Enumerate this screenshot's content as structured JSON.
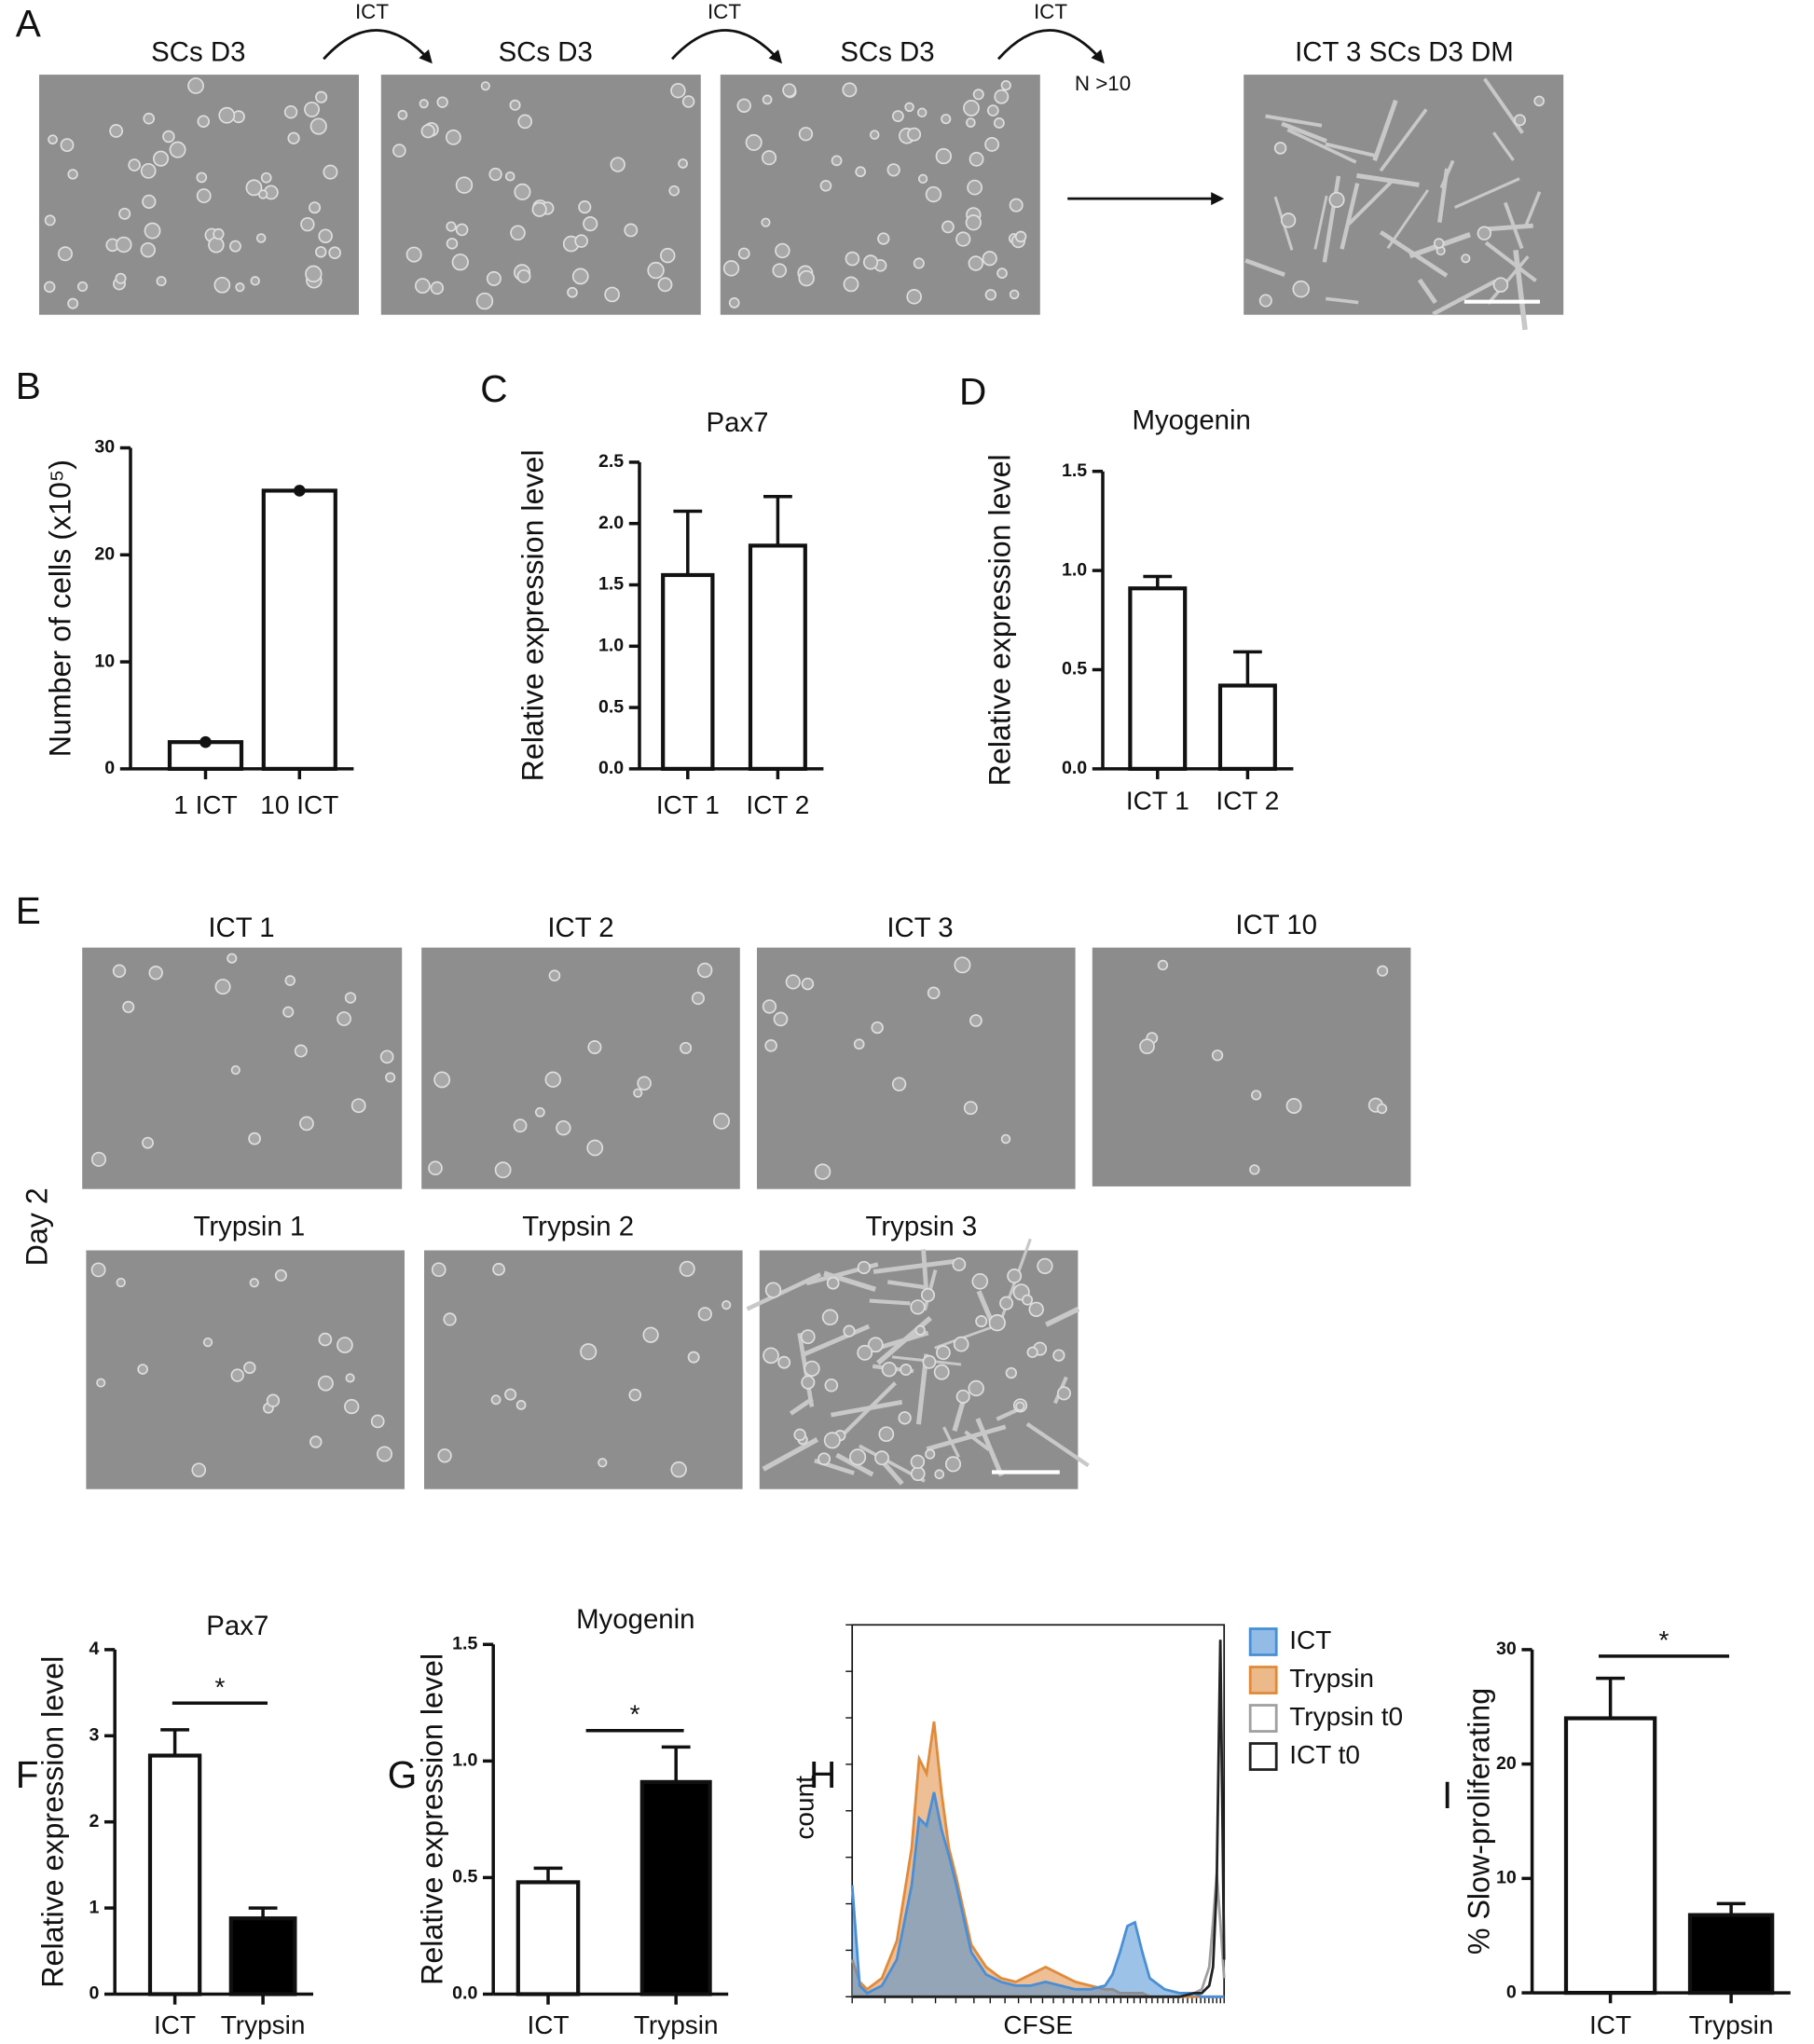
{
  "figure": {
    "panel_labels": [
      "A",
      "B",
      "C",
      "D",
      "E",
      "F",
      "G",
      "H",
      "I"
    ],
    "image_titles": [
      "SCs D3",
      "SCs D3",
      "SCs D3",
      "ICT 3 SCs D3 DM",
      "ICT 1",
      "ICT 2",
      "ICT 3",
      "ICT 10",
      "Trypsin 1",
      "Trypsin 2",
      "Trypsin 3"
    ],
    "arrow_labels": [
      "ICT",
      "ICT",
      "ICT",
      "N >10"
    ],
    "side_label": "Day 2"
  },
  "chart_data": [
    {
      "type": "bar",
      "ylabel": "Number of cells (x10⁵)",
      "categories": [
        "1 ICT",
        "10 ICT"
      ],
      "values": [
        2.5,
        26
      ],
      "colors": [
        "#ffffff",
        "#ffffff"
      ],
      "individual_points": true,
      "ylim": [
        0,
        30
      ],
      "yticks": [
        0,
        10,
        20,
        30
      ]
    },
    {
      "type": "bar",
      "title": "Pax7",
      "ylabel": "Relative expression level",
      "categories": [
        "ICT 1",
        "ICT 2"
      ],
      "values": [
        1.58,
        1.82
      ],
      "errors": [
        0.52,
        0.4
      ],
      "colors": [
        "#ffffff",
        "#ffffff"
      ],
      "ylim": [
        0,
        2.5
      ],
      "yticks": [
        {
          "value": 0,
          "label": "0.0"
        },
        0.5,
        {
          "value": 1,
          "label": "1.0"
        },
        1.5,
        {
          "value": 2,
          "label": "2.0"
        },
        2.5
      ]
    },
    {
      "type": "bar",
      "title": "Myogenin",
      "ylabel": "Relative expression level",
      "categories": [
        "ICT 1",
        "ICT 2"
      ],
      "values": [
        0.91,
        0.42
      ],
      "errors": [
        0.06,
        0.17
      ],
      "colors": [
        "#ffffff",
        "#ffffff"
      ],
      "ylim": [
        0,
        1.5
      ],
      "yticks": [
        {
          "value": 0,
          "label": "0.0"
        },
        0.5,
        {
          "value": 1,
          "label": "1.0"
        },
        1.5
      ]
    },
    {
      "type": "bar",
      "title": "Pax7",
      "ylabel": "Relative expression level",
      "categories": [
        "ICT",
        "Trypsin"
      ],
      "values": [
        2.77,
        0.88
      ],
      "errors": [
        0.3,
        0.12
      ],
      "colors": [
        "#ffffff",
        "#000000"
      ],
      "significance": "*",
      "ylim": [
        0,
        4
      ],
      "yticks": [
        0,
        1,
        2,
        3,
        4
      ]
    },
    {
      "type": "bar",
      "title": "Myogenin",
      "ylabel": "Relative expression level",
      "categories": [
        "ICT",
        "Trypsin"
      ],
      "values": [
        0.48,
        0.91
      ],
      "errors": [
        0.06,
        0.15
      ],
      "colors": [
        "#ffffff",
        "#000000"
      ],
      "significance": "*",
      "ylim": [
        0,
        1.5
      ],
      "yticks": [
        {
          "value": 0,
          "label": "0.0"
        },
        0.5,
        {
          "value": 1,
          "label": "1.0"
        },
        1.5
      ]
    },
    {
      "type": "area",
      "xlabel": "CFSE",
      "ylabel": "count",
      "xlim": [
        0,
        100
      ],
      "ylim": [
        0,
        100
      ],
      "x": [
        0,
        2,
        4,
        8,
        12,
        16,
        18,
        20,
        22,
        24,
        26,
        28,
        32,
        36,
        40,
        44,
        48,
        52,
        56,
        60,
        64,
        68,
        70,
        72,
        74,
        76,
        78,
        80,
        84,
        88,
        92,
        94,
        96,
        97,
        98,
        99,
        100
      ],
      "series": [
        {
          "name": "ICT",
          "color": "#4a8fd6",
          "filled": true,
          "values": [
            30,
            3,
            1,
            3,
            10,
            30,
            48,
            46,
            55,
            45,
            38,
            30,
            12,
            6,
            4,
            3,
            3,
            4,
            3,
            2,
            2,
            3,
            6,
            12,
            19,
            20,
            12,
            5,
            2,
            1,
            1,
            0,
            0,
            0,
            0,
            0,
            0
          ]
        },
        {
          "name": "Trypsin",
          "color": "#e08a3c",
          "filled": true,
          "values": [
            10,
            4,
            2,
            5,
            15,
            40,
            64,
            60,
            74,
            55,
            40,
            32,
            14,
            8,
            5,
            4,
            6,
            8,
            6,
            4,
            3,
            2,
            2,
            1,
            1,
            1,
            1,
            0,
            0,
            0,
            0,
            0,
            0,
            0,
            0,
            0,
            0
          ]
        },
        {
          "name": "Trypsin t0",
          "color": "#a0a0a0",
          "filled": false,
          "values": [
            0,
            0,
            0,
            0,
            0,
            0,
            0,
            0,
            0,
            0,
            0,
            0,
            0,
            0,
            0,
            0,
            0,
            0,
            0,
            0,
            0,
            0,
            0,
            0,
            0,
            0,
            0,
            0,
            0,
            0,
            1,
            2,
            8,
            20,
            33,
            20,
            5
          ]
        },
        {
          "name": "ICT t0",
          "color": "#222222",
          "filled": false,
          "values": [
            0,
            0,
            0,
            0,
            0,
            0,
            0,
            0,
            0,
            0,
            0,
            0,
            0,
            0,
            0,
            0,
            0,
            0,
            0,
            0,
            0,
            0,
            0,
            0,
            0,
            0,
            0,
            0,
            0,
            0,
            1,
            1,
            3,
            8,
            30,
            96,
            10
          ]
        }
      ]
    },
    {
      "type": "bar",
      "ylabel": "% Slow-proliferating",
      "categories": [
        "ICT",
        "Trypsin"
      ],
      "values": [
        24,
        6.8
      ],
      "errors": [
        3.5,
        1
      ],
      "colors": [
        "#ffffff",
        "#000000"
      ],
      "significance": "*",
      "ylim": [
        0,
        30
      ],
      "yticks": [
        0,
        10,
        20,
        30
      ]
    }
  ]
}
